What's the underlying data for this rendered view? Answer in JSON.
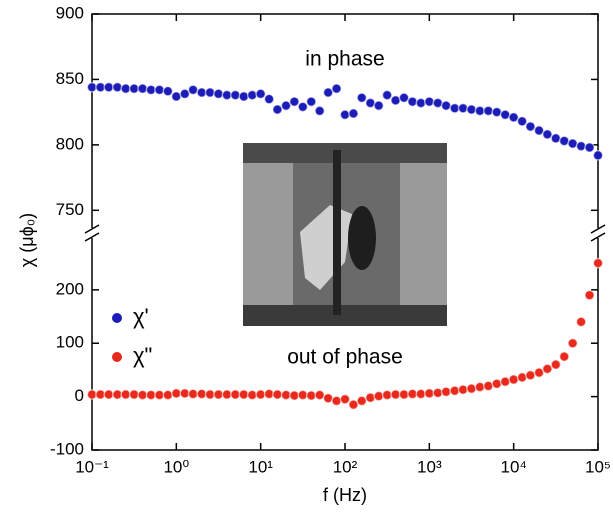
{
  "chart_data": {
    "type": "scatter",
    "x_label": "f (Hz)",
    "y_label": "χ (μϕ₀)",
    "annotations": [
      "in phase",
      "out of phase"
    ],
    "xscale": "log",
    "legend": "left",
    "xlim": [
      0.1,
      100000
    ],
    "xticks": [
      {
        "value": 0.1,
        "label": "10⁻¹"
      },
      {
        "value": 1,
        "label": "10⁰"
      },
      {
        "value": 10,
        "label": "10¹"
      },
      {
        "value": 100,
        "label": "10²"
      },
      {
        "value": 1000,
        "label": "10³"
      },
      {
        "value": 10000,
        "label": "10⁴"
      },
      {
        "value": 100000,
        "label": "10⁵"
      }
    ],
    "ylim": [
      -100,
      284
    ],
    "yticks": [
      -100,
      0,
      100,
      200
    ],
    "y2lim": [
      738,
      900
    ],
    "y2ticks": [
      750,
      800,
      850,
      900
    ],
    "x": [
      0.1,
      0.126,
      0.158,
      0.2,
      0.251,
      0.316,
      0.398,
      0.501,
      0.631,
      0.794,
      1,
      1.26,
      1.58,
      2,
      2.51,
      3.16,
      3.98,
      5.01,
      6.31,
      7.94,
      10,
      12.6,
      15.8,
      20,
      25.1,
      31.6,
      39.8,
      50.1,
      63.1,
      79.4,
      100,
      126,
      158,
      200,
      251,
      316,
      398,
      501,
      631,
      794,
      1000,
      1260,
      1580,
      2000,
      2510,
      3160,
      3980,
      5010,
      6310,
      7940,
      10000,
      12600,
      15800,
      20000,
      25100,
      31600,
      39800,
      50100,
      63100,
      79400,
      100000
    ],
    "series": [
      {
        "name": "χ'",
        "color": "#1c1cb8",
        "axis": "y2",
        "values": [
          844,
          844,
          844,
          844,
          843,
          843,
          843,
          842,
          842,
          841,
          837,
          839,
          842,
          840,
          840,
          839,
          838,
          838,
          837,
          838,
          839,
          835,
          827,
          830,
          833,
          829,
          833,
          826,
          840,
          843,
          823,
          824,
          836,
          832,
          830,
          838,
          834,
          836,
          833,
          832,
          833,
          832,
          830,
          828,
          828,
          827,
          826,
          826,
          825,
          823,
          821,
          818,
          814,
          811,
          808,
          805,
          803,
          801,
          799,
          798,
          792
        ]
      },
      {
        "name": "χ\"",
        "color": "#e8291c",
        "values": [
          4,
          4,
          4,
          4,
          4,
          4,
          3,
          3,
          3,
          3,
          6,
          6,
          5,
          5,
          4,
          4,
          4,
          4,
          4,
          3,
          4,
          5,
          4,
          3,
          2,
          3,
          2,
          3,
          -3,
          -8,
          -5,
          -15,
          -8,
          -2,
          1,
          3,
          4,
          4,
          5,
          5,
          6,
          7,
          9,
          11,
          13,
          15,
          18,
          20,
          24,
          28,
          32,
          36,
          40,
          45,
          52,
          60,
          75,
          100,
          140,
          190,
          250
        ]
      }
    ]
  }
}
